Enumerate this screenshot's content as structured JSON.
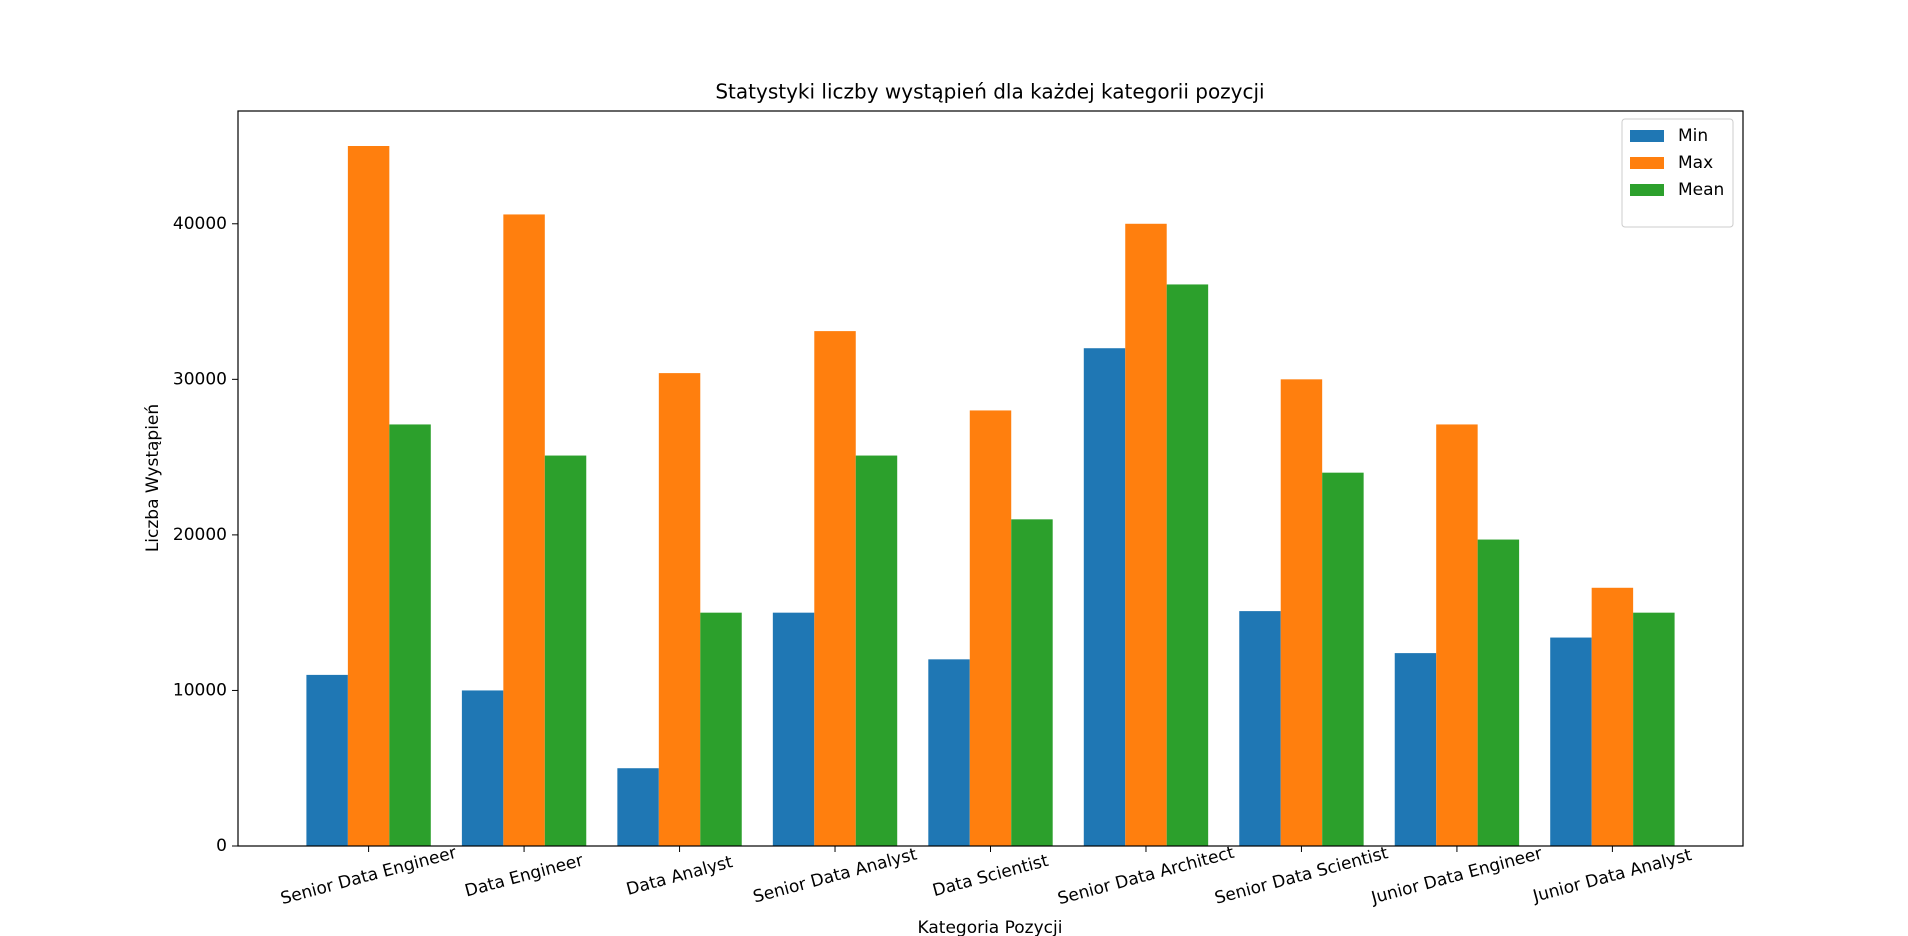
{
  "chart_data": {
    "type": "bar",
    "title": "Statystyki liczby wystąpień dla każdej kategorii pozycji",
    "x_label": "Kategoria Pozycji",
    "y_label": "Liczba Wystąpień",
    "categories": [
      "Senior Data Engineer",
      "Data Engineer",
      "Data Analyst",
      "Senior Data Analyst",
      "Data Scientist",
      "Senior Data Architect",
      "Senior Data Scientist",
      "Junior Data Engineer",
      "Junior Data Analyst"
    ],
    "series": [
      {
        "name": "Min",
        "color": "#1f77b4",
        "values": [
          11000,
          10000,
          5000,
          15000,
          12000,
          32000,
          15100,
          12400,
          13400
        ]
      },
      {
        "name": "Max",
        "color": "#ff7f0e",
        "values": [
          45000,
          40600,
          30400,
          33100,
          28000,
          40000,
          30000,
          27100,
          16600
        ]
      },
      {
        "name": "Mean",
        "color": "#2ca02c",
        "values": [
          27100,
          25100,
          15000,
          25100,
          21000,
          36100,
          24000,
          19700,
          15000
        ]
      }
    ],
    "ylim": [
      0,
      47250
    ],
    "yticks": [
      0,
      10000,
      20000,
      30000,
      40000
    ],
    "legend": "upper right",
    "grid": false
  }
}
